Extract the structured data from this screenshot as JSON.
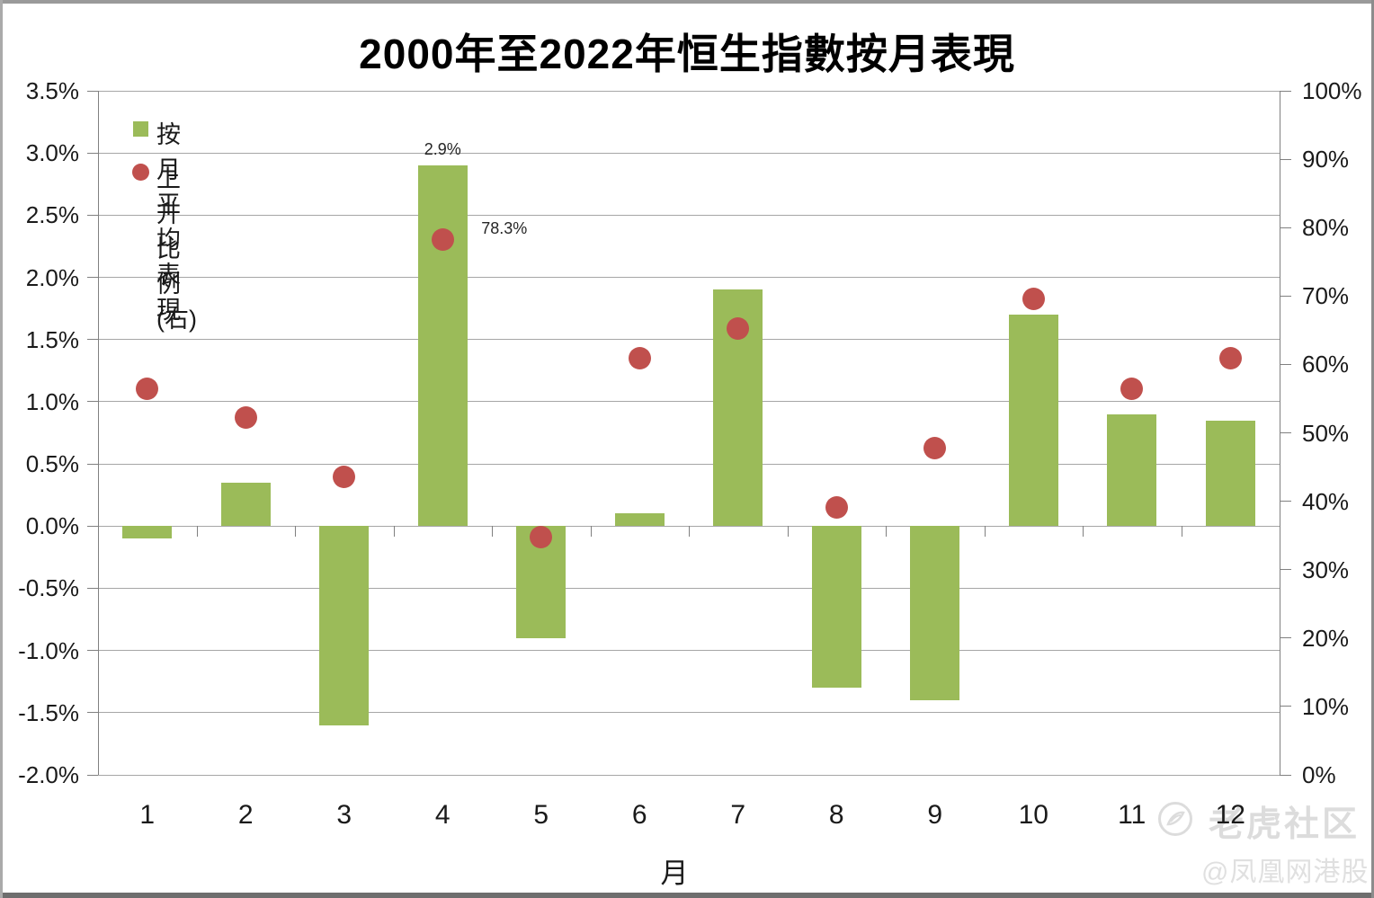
{
  "title": "2000年至2022年恒生指數按月表現",
  "legend": {
    "bar_label": "按月平均表現",
    "dot_label": "上升比例 (右)"
  },
  "axes": {
    "left_ticks": [
      "3.5%",
      "3.0%",
      "2.5%",
      "2.0%",
      "1.5%",
      "1.0%",
      "0.5%",
      "0.0%",
      "-0.5%",
      "-1.0%",
      "-1.5%",
      "-2.0%"
    ],
    "right_ticks": [
      "100%",
      "90%",
      "80%",
      "70%",
      "60%",
      "50%",
      "40%",
      "30%",
      "20%",
      "10%",
      "0%"
    ],
    "x_ticks": [
      "1",
      "2",
      "3",
      "4",
      "5",
      "6",
      "7",
      "8",
      "9",
      "10",
      "11",
      "12"
    ],
    "x_title": "月"
  },
  "colors": {
    "bar": "#9bbb59",
    "dot": "#c0504d",
    "gridline": "#a6a6a6",
    "axis_line": "#808080"
  },
  "chart_data": {
    "type": "combo",
    "title": "2000年至2022年恒生指數按月表現",
    "xlabel": "月",
    "categories": [
      1,
      2,
      3,
      4,
      5,
      6,
      7,
      8,
      9,
      10,
      11,
      12
    ],
    "series": [
      {
        "name": "按月平均表現",
        "type": "bar",
        "axis": "left",
        "values": [
          -0.1,
          0.35,
          -1.6,
          2.9,
          -0.9,
          0.1,
          1.9,
          -1.3,
          -1.4,
          1.7,
          0.9,
          0.85
        ]
      },
      {
        "name": "上升比例 (右)",
        "type": "scatter",
        "axis": "right",
        "values": [
          56.5,
          52.2,
          43.5,
          78.3,
          34.8,
          60.9,
          65.2,
          39.1,
          47.8,
          69.6,
          56.5,
          60.9
        ]
      }
    ],
    "left_axis": {
      "min": -2.0,
      "max": 3.5,
      "step": 0.5,
      "format": "percent"
    },
    "right_axis": {
      "min": 0,
      "max": 100,
      "step": 10,
      "format": "percent"
    },
    "grid": true,
    "legend_position": "top-left-inside",
    "annotations": [
      {
        "text": "2.9%",
        "series": "bar",
        "month": 4
      },
      {
        "text": "78.3%",
        "series": "scatter",
        "month": 4
      }
    ]
  },
  "watermark": {
    "community_label": "老虎社区",
    "account_label": "@凤凰网港股"
  }
}
